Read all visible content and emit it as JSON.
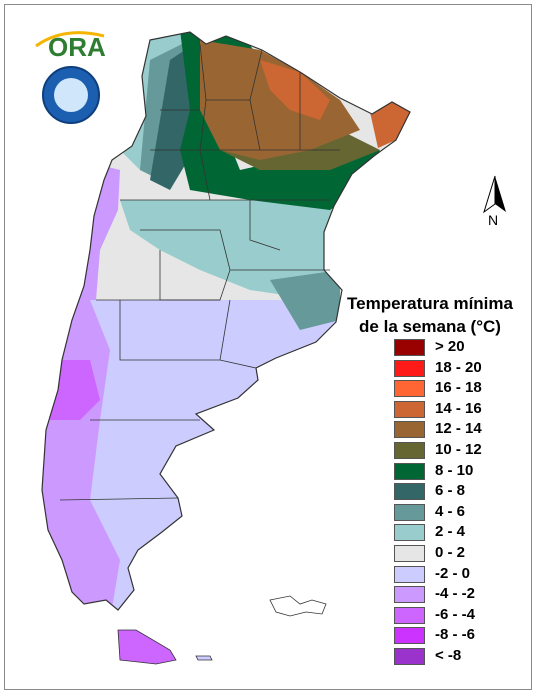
{
  "logo": {
    "name": "ORA",
    "seal": "Servicio Meteorologico Nacional Argentina"
  },
  "legend": {
    "title_line1": "Temperatura mínima",
    "title_line2": "de la semana (°C)",
    "items": [
      {
        "label": "> 20",
        "color": "#990000"
      },
      {
        "label": "18 - 20",
        "color": "#ff1a1a"
      },
      {
        "label": "16 - 18",
        "color": "#ff6633"
      },
      {
        "label": "14 - 16",
        "color": "#cc6633"
      },
      {
        "label": "12 - 14",
        "color": "#996633"
      },
      {
        "label": "10 - 12",
        "color": "#666633"
      },
      {
        "label": "8 - 10",
        "color": "#006633"
      },
      {
        "label": "6 - 8",
        "color": "#336666"
      },
      {
        "label": "4 - 6",
        "color": "#669999"
      },
      {
        "label": "2 - 4",
        "color": "#99cccc"
      },
      {
        "label": "0 - 2",
        "color": "#e6e6e6"
      },
      {
        "label": "-2 - 0",
        "color": "#ccccff"
      },
      {
        "label": "-4 - -2",
        "color": "#cc99ff"
      },
      {
        "label": "-6 - -4",
        "color": "#cc66ff"
      },
      {
        "label": "-8 - -6",
        "color": "#cc33ff"
      },
      {
        "label": "< -8",
        "color": "#9933cc"
      }
    ]
  },
  "north_arrow": {
    "label": "N"
  }
}
